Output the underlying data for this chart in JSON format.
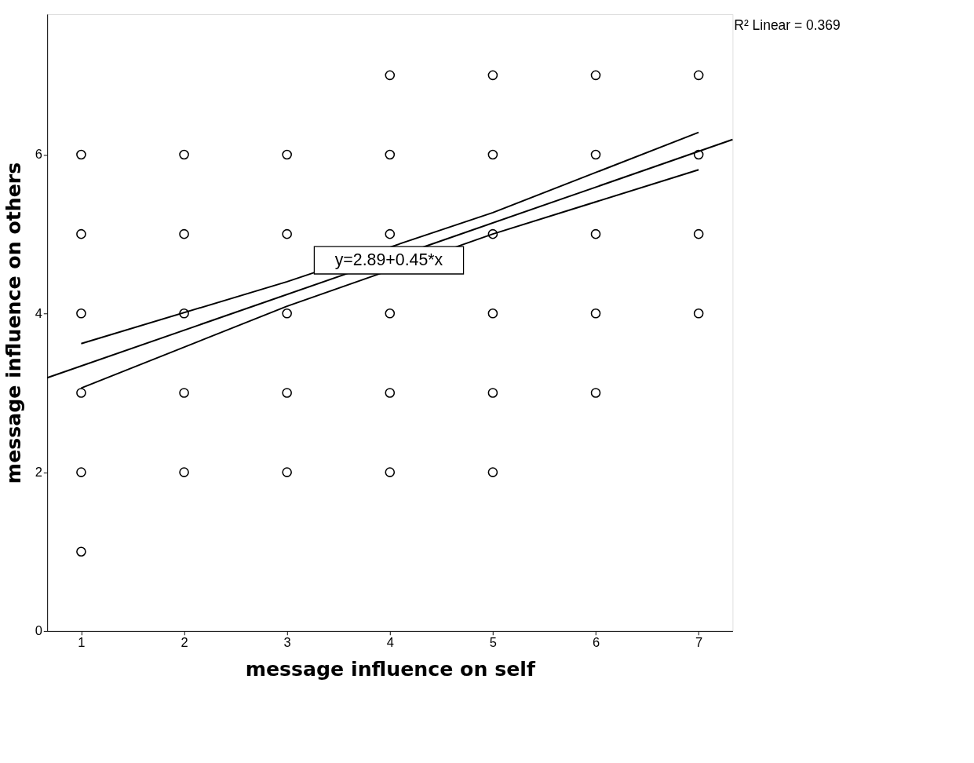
{
  "chart_data": {
    "type": "scatter",
    "xlabel": "message influence on self",
    "ylabel": "message influence on others",
    "xlim": [
      0.67,
      7.33
    ],
    "ylim": [
      0,
      7.77
    ],
    "xticks": [
      1,
      2,
      3,
      4,
      5,
      6,
      7
    ],
    "yticks": [
      0,
      2,
      4,
      6
    ],
    "grid": false,
    "annotations": [
      {
        "text": "y=2.89+0.45*x",
        "x": 3.99,
        "y": 4.67
      },
      "R² Linear = 0.369"
    ],
    "series": [
      {
        "marker": "circle",
        "color": "#000000",
        "x": [
          1,
          1,
          1,
          1,
          1,
          1,
          2,
          2,
          2,
          2,
          2,
          3,
          3,
          3,
          3,
          3,
          4,
          4,
          4,
          4,
          4,
          4,
          5,
          5,
          5,
          5,
          5,
          5,
          6,
          6,
          6,
          6,
          6,
          7,
          7,
          7,
          7
        ],
        "values": [
          6,
          5,
          4,
          3,
          2,
          1,
          6,
          5,
          4,
          3,
          2,
          6,
          5,
          4,
          3,
          2,
          7,
          6,
          5,
          4,
          3,
          2,
          7,
          6,
          5,
          4,
          3,
          2,
          7,
          6,
          5,
          4,
          3,
          7,
          6,
          5,
          4
        ]
      },
      {
        "type": "line",
        "color": "#000000",
        "x": [
          0.67,
          7.33
        ],
        "values": [
          3.19,
          6.19
        ]
      },
      {
        "type": "line",
        "color": "#000000",
        "x": [
          1,
          3,
          5,
          7
        ],
        "values": [
          3.62,
          4.4,
          5.27,
          6.28
        ]
      },
      {
        "type": "line",
        "color": "#000000",
        "x": [
          1,
          3,
          5,
          7
        ],
        "values": [
          3.06,
          4.09,
          5.0,
          5.81
        ]
      }
    ]
  }
}
